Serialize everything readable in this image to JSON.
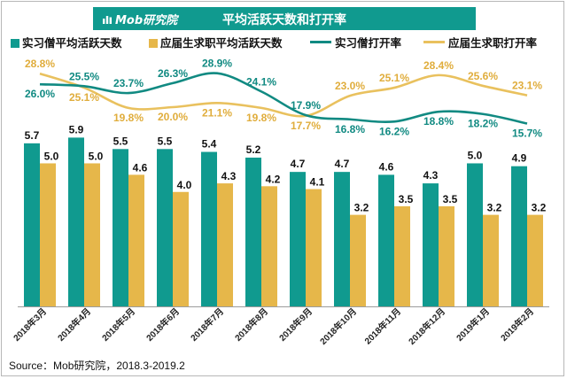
{
  "header": {
    "logo_text": "Mob研究院",
    "title": "平均活跃天数和打开率"
  },
  "source": "Source：Mob研究院，2018.3-2019.2",
  "colors": {
    "teal": "#109a8f",
    "gold": "#e6b74a",
    "teal_line": "#118a82",
    "gold_line": "#e9c15e"
  },
  "chart_data": {
    "type": "bar",
    "categories": [
      "2018年3月",
      "2018年4月",
      "2018年5月",
      "2018年6月",
      "2018年7月",
      "2018年8月",
      "2018年9月",
      "2018年10月",
      "2018年11月",
      "2018年12月",
      "2019年1月",
      "2019年2月"
    ],
    "series": [
      {
        "name": "实习僧平均活跃天数",
        "kind": "bar",
        "values": [
          5.7,
          5.9,
          5.5,
          5.5,
          5.4,
          5.2,
          4.7,
          4.7,
          4.6,
          4.3,
          5.0,
          4.9
        ],
        "labels": [
          "5.7",
          "5.9",
          "5.5",
          "5.5",
          "5.4",
          "5.2",
          "4.7",
          "4.7",
          "4.6",
          "4.3",
          "5.0",
          "4.9"
        ]
      },
      {
        "name": "应届生求职平均活跃天数",
        "kind": "bar",
        "values": [
          5.0,
          5.0,
          4.6,
          4.0,
          4.3,
          4.2,
          4.1,
          3.2,
          3.5,
          3.5,
          3.2,
          3.2
        ],
        "labels": [
          "5.0",
          "5.0",
          "4.6",
          "4.0",
          "4.3",
          "4.2",
          "4.1",
          "3.2",
          "3.5",
          "3.5",
          "3.2",
          "3.2"
        ]
      },
      {
        "name": "实习僧打开率",
        "kind": "line",
        "unit": "%",
        "values": [
          26.0,
          25.5,
          23.7,
          26.3,
          28.9,
          24.1,
          17.9,
          16.8,
          16.2,
          18.8,
          18.2,
          15.7
        ],
        "labels": [
          "26.0%",
          "25.5%",
          "23.7%",
          "26.3%",
          "28.9%",
          "24.1%",
          "17.9%",
          "16.8%",
          "16.2%",
          "18.8%",
          "18.2%",
          "15.7%"
        ]
      },
      {
        "name": "应届生求职打开率",
        "kind": "line",
        "unit": "%",
        "values": [
          28.8,
          25.1,
          19.8,
          20.0,
          21.1,
          19.8,
          17.7,
          23.0,
          25.1,
          28.4,
          25.6,
          23.1
        ],
        "labels": [
          "28.8%",
          "25.1%",
          "19.8%",
          "20.0%",
          "21.1%",
          "19.8%",
          "17.7%",
          "23.0%",
          "25.1%",
          "28.4%",
          "25.6%",
          "23.1%"
        ]
      }
    ],
    "bar_axis_range": [
      0,
      6.5
    ],
    "line_axis_range": [
      10,
      30
    ],
    "grid": false,
    "legend_position": "top"
  }
}
